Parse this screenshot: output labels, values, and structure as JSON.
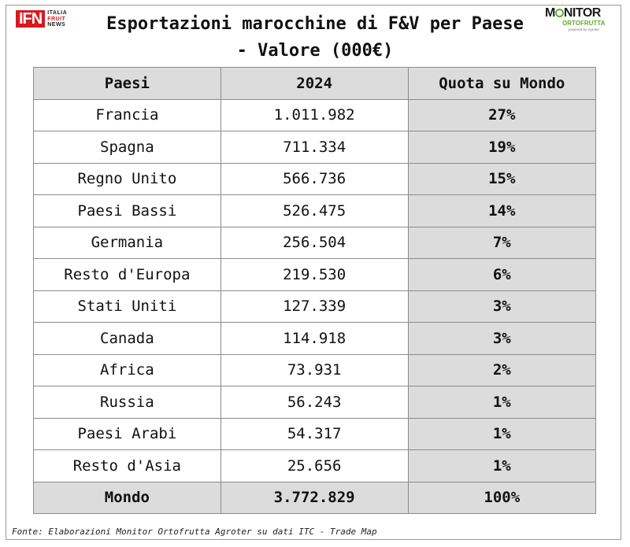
{
  "logos": {
    "ifn": {
      "mark": "IFN",
      "line1": "ITALIA",
      "line2": "FRUIT",
      "line3": "NEWS"
    },
    "monitor": {
      "word_start": "M",
      "word_end": "NITOR",
      "sub": "ORTOFRUTTA",
      "tiny": "powered by Agroter"
    }
  },
  "chart_data": {
    "type": "table",
    "title_line1": "Esportazioni marocchine di F&V per Paese",
    "title_line2": "- Valore (000€)",
    "columns": [
      "Paesi",
      "2024",
      "Quota su Mondo"
    ],
    "rows": [
      {
        "country": "Francia",
        "value": "1.011.982",
        "share": "27%"
      },
      {
        "country": "Spagna",
        "value": "711.334",
        "share": "19%"
      },
      {
        "country": "Regno Unito",
        "value": "566.736",
        "share": "15%"
      },
      {
        "country": "Paesi Bassi",
        "value": "526.475",
        "share": "14%"
      },
      {
        "country": "Germania",
        "value": "256.504",
        "share": "7%"
      },
      {
        "country": "Resto d'Europa",
        "value": "219.530",
        "share": "6%"
      },
      {
        "country": "Stati Uniti",
        "value": "127.339",
        "share": "3%"
      },
      {
        "country": "Canada",
        "value": "114.918",
        "share": "3%"
      },
      {
        "country": "Africa",
        "value": "73.931",
        "share": "2%"
      },
      {
        "country": "Russia",
        "value": "56.243",
        "share": "1%"
      },
      {
        "country": "Paesi Arabi",
        "value": "54.317",
        "share": "1%"
      },
      {
        "country": "Resto d'Asia",
        "value": "25.656",
        "share": "1%"
      }
    ],
    "total": {
      "country": "Mondo",
      "value": "3.772.829",
      "share": "100%"
    },
    "source": "Fonte: Elaborazioni Monitor Ortofrutta Agroter su dati ITC - Trade Map"
  }
}
